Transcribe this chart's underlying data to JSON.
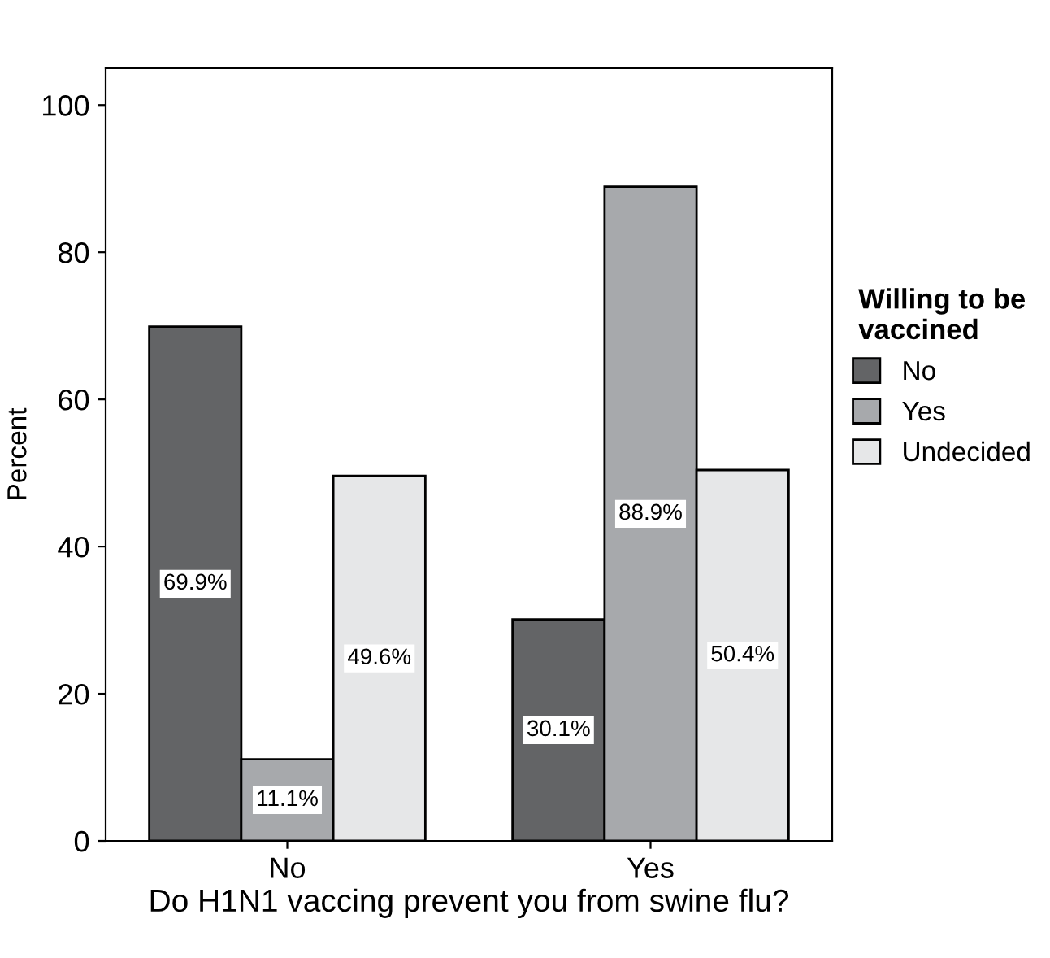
{
  "chart_data": {
    "type": "bar",
    "xlabel": "Do H1N1 vaccing prevent you from swine flu?",
    "ylabel": "Percent",
    "legend_title": "Willing to be\nvaccined",
    "categories": [
      "No",
      "Yes"
    ],
    "series": [
      {
        "name": "No",
        "color": "#636466",
        "values": [
          69.9,
          30.1
        ],
        "value_labels": [
          "69.9%",
          "30.1%"
        ]
      },
      {
        "name": "Yes",
        "color": "#a7a9ac",
        "values": [
          11.1,
          88.9
        ],
        "value_labels": [
          "11.1%",
          "88.9%"
        ]
      },
      {
        "name": "Undecided",
        "color": "#e6e7e8",
        "values": [
          49.6,
          50.4
        ],
        "value_labels": [
          "49.6%",
          "50.4%"
        ]
      }
    ],
    "ylim": [
      0,
      105
    ],
    "yticks": [
      0,
      20,
      40,
      60,
      80,
      100
    ],
    "grid": false,
    "legend": "right"
  }
}
